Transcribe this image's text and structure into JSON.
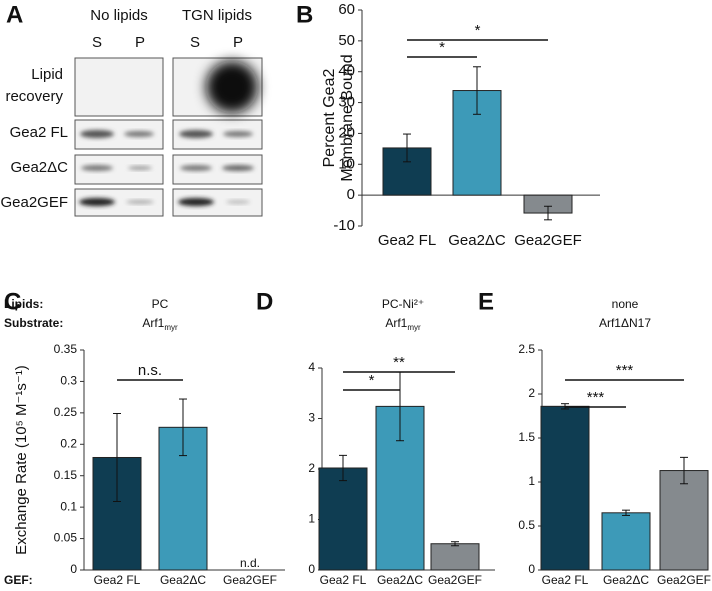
{
  "blot": {
    "panel": "A",
    "groups": [
      "No lipids",
      "TGN lipids"
    ],
    "lanes": [
      "S",
      "P",
      "S",
      "P"
    ],
    "rows": [
      [
        "Lipid",
        "recovery"
      ],
      [
        "Gea2 FL"
      ],
      [
        "Gea2ΔC"
      ],
      [
        "Gea2GEF"
      ]
    ]
  },
  "chart_data": [
    {
      "type": "bar",
      "panel": "B",
      "ylabel": [
        "Percent Gea2",
        "Membrane Bound"
      ],
      "categories": [
        "Gea2 FL",
        "Gea2ΔC",
        "Gea2GEF"
      ],
      "values": [
        15.3,
        33.9,
        -5.8
      ],
      "errors": [
        4.5,
        7.7,
        2.2
      ],
      "colors": [
        "#0f3d52",
        "#3d9ab8",
        "#858a8e"
      ],
      "ylim": [
        -10,
        60
      ],
      "yticks": [
        -10,
        0,
        10,
        20,
        30,
        40,
        50,
        60
      ],
      "significance": [
        {
          "between": [
            "Gea2 FL",
            "Gea2ΔC"
          ],
          "label": "*"
        },
        {
          "between": [
            "Gea2 FL",
            "Gea2GEF"
          ],
          "label": "*"
        }
      ]
    },
    {
      "type": "bar",
      "panel": "C",
      "ylabel": "Exchange Rate (10⁵ M⁻¹s⁻¹)",
      "row_labels": {
        "lipids": "Lipids:",
        "substrate": "Substrate:",
        "gef": "GEF:"
      },
      "conditions": {
        "lipids": "PC",
        "substrate": "Arf1",
        "substrate_sub": "myr"
      },
      "categories": [
        "Gea2 FL",
        "Gea2ΔC",
        "Gea2GEF"
      ],
      "values": [
        0.179,
        0.227,
        null
      ],
      "value_labels": [
        null,
        null,
        "n.d."
      ],
      "errors": [
        0.07,
        0.045,
        null
      ],
      "colors": [
        "#0f3d52",
        "#3d9ab8",
        "#858a8e"
      ],
      "ylim": [
        0,
        0.35
      ],
      "yticks": [
        0,
        0.05,
        0.1,
        0.15,
        0.2,
        0.25,
        0.3,
        0.35
      ],
      "significance": [
        {
          "between": [
            "Gea2 FL",
            "Gea2ΔC"
          ],
          "label": "n.s."
        }
      ]
    },
    {
      "type": "bar",
      "panel": "D",
      "conditions": {
        "lipids": "PC-Ni²⁺",
        "substrate": "Arf1",
        "substrate_sub": "myr"
      },
      "categories": [
        "Gea2 FL",
        "Gea2ΔC",
        "Gea2GEF"
      ],
      "values": [
        2.02,
        3.24,
        0.52
      ],
      "errors": [
        0.25,
        0.68,
        0.04
      ],
      "colors": [
        "#0f3d52",
        "#3d9ab8",
        "#858a8e"
      ],
      "ylim": [
        0,
        4
      ],
      "yticks": [
        0,
        1,
        2,
        3,
        4
      ],
      "significance": [
        {
          "between": [
            "Gea2 FL",
            "Gea2ΔC"
          ],
          "label": "*"
        },
        {
          "between": [
            "Gea2 FL",
            "Gea2GEF"
          ],
          "label": "**"
        }
      ]
    },
    {
      "type": "bar",
      "panel": "E",
      "conditions": {
        "lipids": "none",
        "substrate": "Arf1ΔN17"
      },
      "categories": [
        "Gea2 FL",
        "Gea2ΔC",
        "Gea2GEF"
      ],
      "values": [
        1.86,
        0.65,
        1.13
      ],
      "errors": [
        0.03,
        0.03,
        0.15
      ],
      "colors": [
        "#0f3d52",
        "#3d9ab8",
        "#858a8e"
      ],
      "ylim": [
        0,
        2.5
      ],
      "yticks": [
        0,
        0.5,
        1,
        1.5,
        2,
        2.5
      ],
      "significance": [
        {
          "between": [
            "Gea2 FL",
            "Gea2ΔC"
          ],
          "label": "***"
        },
        {
          "between": [
            "Gea2 FL",
            "Gea2GEF"
          ],
          "label": "***"
        }
      ]
    }
  ]
}
